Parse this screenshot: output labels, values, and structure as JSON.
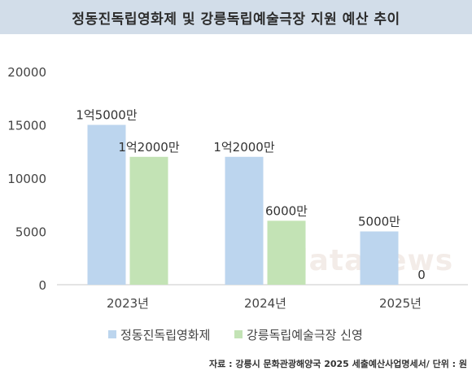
{
  "chart_data": {
    "type": "bar",
    "title": "정동진독립영화제 및 강릉독립예술극장 지원 예산 추이",
    "categories": [
      "2023년",
      "2024년",
      "2025년"
    ],
    "series": [
      {
        "name": "정동진독립영화제",
        "values": [
          15000,
          12000,
          5000
        ],
        "labels": [
          "1억5000만",
          "1억2000만",
          "5000만"
        ],
        "color": "#bcd5ee"
      },
      {
        "name": "강릉독립예술극장 신영",
        "values": [
          12000,
          6000,
          0
        ],
        "labels": [
          "1억2000만",
          "6000만",
          "0"
        ],
        "color": "#c3e3b5"
      }
    ],
    "ylim": [
      0,
      20000
    ],
    "yticks": [
      "0",
      "5000",
      "10000",
      "15000",
      "20000"
    ],
    "grid": false,
    "legend": "bottom",
    "watermark": "datanews",
    "source": "자료 : 강릉시 문화관광해양국 2025 세출예산사업명세서/ 단위 : 원"
  }
}
